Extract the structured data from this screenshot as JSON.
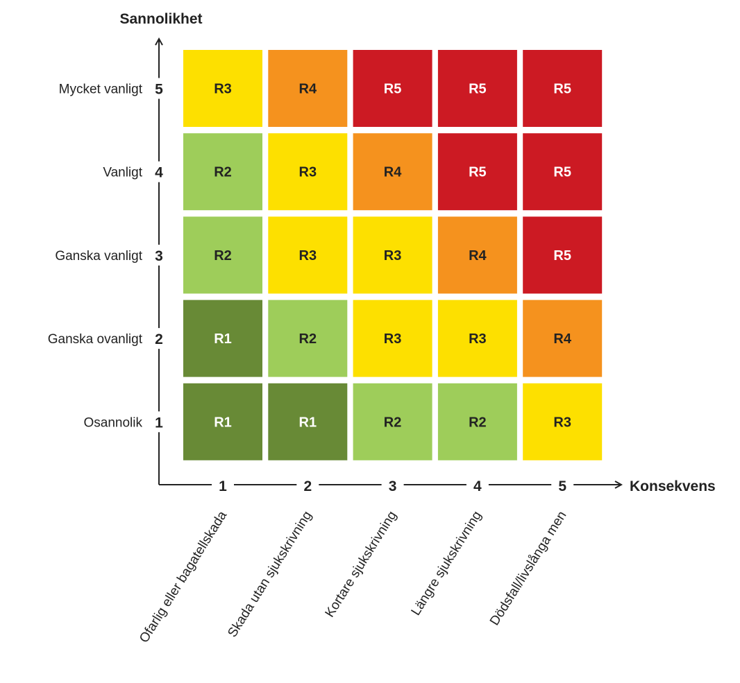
{
  "chart_data": {
    "type": "heatmap",
    "ylabel": "Sannolikhet",
    "xlabel": "Konsekvens",
    "x_ticks": [
      "1",
      "2",
      "3",
      "4",
      "5"
    ],
    "x_categories": [
      "Ofarlig eller bagatellskada",
      "Skada utan sjukskrivning",
      "Kortare sjukskrivning",
      "Längre sjukskrivning",
      "Dödsfall/livslånga men"
    ],
    "y_ticks": [
      "5",
      "4",
      "3",
      "2",
      "1"
    ],
    "y_categories": [
      "Mycket vanligt",
      "Vanligt",
      "Ganska vanligt",
      "Ganska ovanligt",
      "Osannolik"
    ],
    "cells": [
      [
        "R3",
        "R4",
        "R5",
        "R5",
        "R5"
      ],
      [
        "R2",
        "R3",
        "R4",
        "R5",
        "R5"
      ],
      [
        "R2",
        "R3",
        "R3",
        "R4",
        "R5"
      ],
      [
        "R1",
        "R2",
        "R3",
        "R3",
        "R4"
      ],
      [
        "R1",
        "R1",
        "R2",
        "R2",
        "R3"
      ]
    ],
    "level_colors": {
      "R1": "#688a36",
      "R2": "#9ecd5a",
      "R3": "#fde000",
      "R4": "#f5921e",
      "R5": "#cc1a23"
    },
    "level_text_colors": {
      "R1": "#ffffff",
      "R2": "#222222",
      "R3": "#222222",
      "R4": "#222222",
      "R5": "#ffffff"
    }
  }
}
